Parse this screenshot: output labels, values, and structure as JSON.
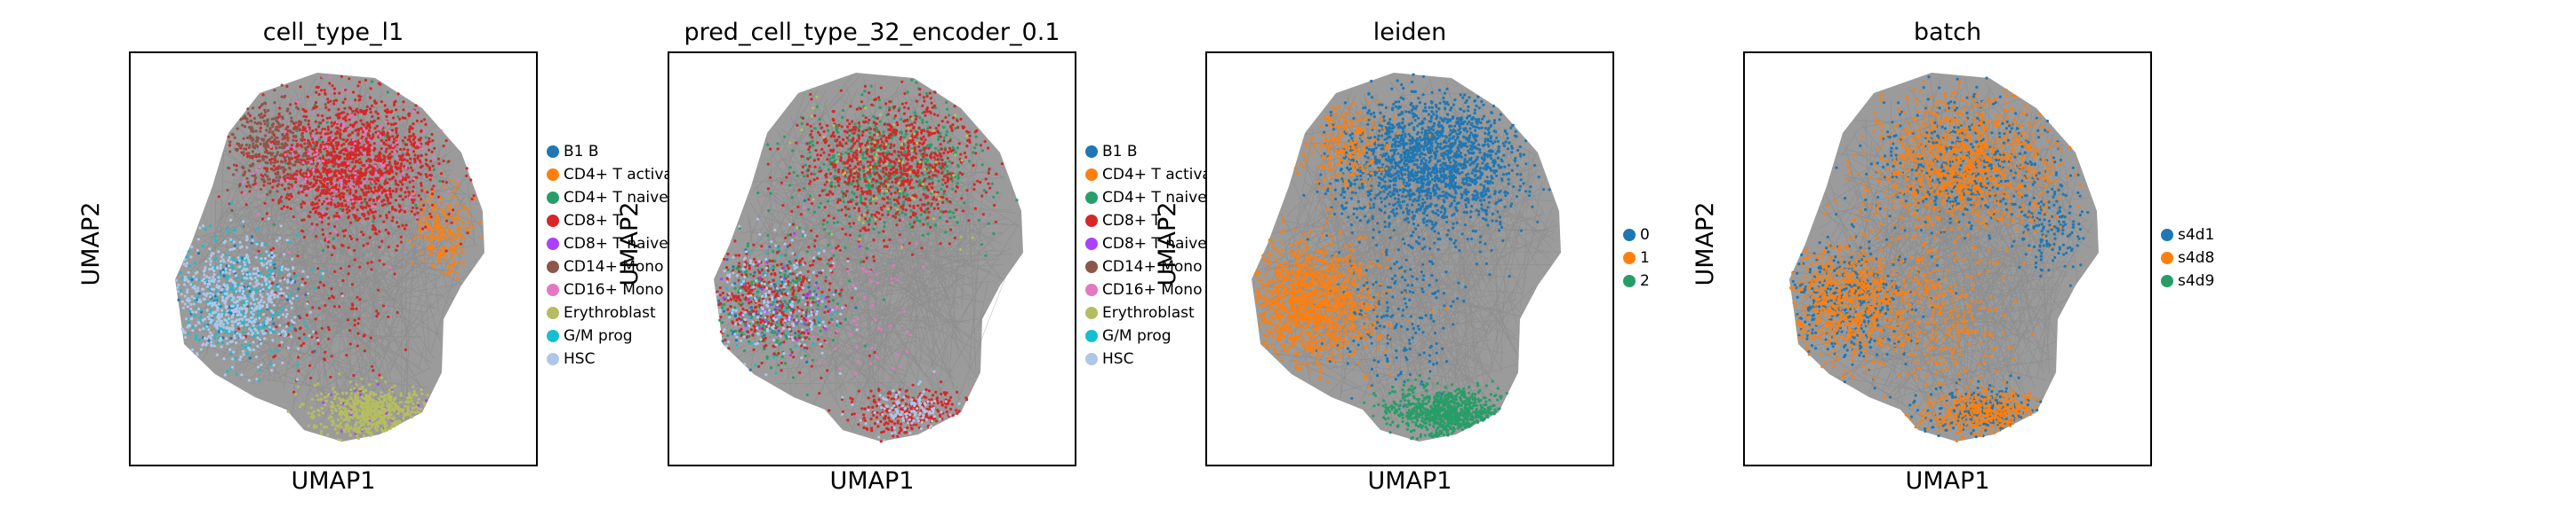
{
  "chart_data": [
    {
      "type": "scatter",
      "title": "cell_type_l1",
      "xlabel": "UMAP1",
      "ylabel": "UMAP2",
      "axes_ticks": "none",
      "edges": "gray neighbor-graph edges drawn behind points",
      "legend_position": "right",
      "categories": [
        "B1 B",
        "CD4+ T activa",
        "CD4+ T naive",
        "CD8+ T",
        "CD8+ T naive",
        "CD14+ Mono",
        "CD16+ Mono",
        "Erythroblast",
        "G/M prog",
        "HSC"
      ],
      "colors": [
        "#1f77b4",
        "#ff7f0e",
        "#279e68",
        "#d62728",
        "#aa40fc",
        "#8c564b",
        "#e377c2",
        "#b5bd61",
        "#17becf",
        "#aec7e8"
      ]
    },
    {
      "type": "scatter",
      "title": "pred_cell_type_32_encoder_0.1",
      "xlabel": "UMAP1",
      "ylabel": "UMAP2",
      "axes_ticks": "none",
      "edges": "gray neighbor-graph edges drawn behind points",
      "legend_position": "right",
      "categories": [
        "B1 B",
        "CD4+ T activa",
        "CD4+ T naive",
        "CD8+ T",
        "CD8+ T naive",
        "CD14+ Mono",
        "CD16+ Mono",
        "Erythroblast",
        "G/M prog",
        "HSC"
      ],
      "colors": [
        "#1f77b4",
        "#ff7f0e",
        "#279e68",
        "#d62728",
        "#aa40fc",
        "#8c564b",
        "#e377c2",
        "#b5bd61",
        "#17becf",
        "#aec7e8"
      ]
    },
    {
      "type": "scatter",
      "title": "leiden",
      "xlabel": "UMAP1",
      "ylabel": "UMAP2",
      "axes_ticks": "none",
      "edges": "gray neighbor-graph edges drawn behind points",
      "legend_position": "right",
      "categories": [
        "0",
        "1",
        "2"
      ],
      "colors": [
        "#1f77b4",
        "#ff7f0e",
        "#279e68"
      ]
    },
    {
      "type": "scatter",
      "title": "batch",
      "xlabel": "UMAP1",
      "ylabel": "UMAP2",
      "axes_ticks": "none",
      "edges": "gray neighbor-graph edges drawn behind points",
      "legend_position": "right",
      "categories": [
        "s4d1",
        "s4d8",
        "s4d9"
      ],
      "colors": [
        "#1f77b4",
        "#ff7f0e",
        "#279e68"
      ]
    }
  ]
}
